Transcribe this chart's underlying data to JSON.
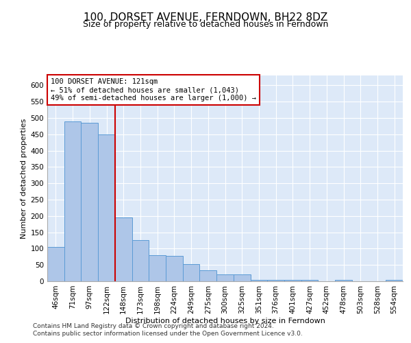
{
  "title": "100, DORSET AVENUE, FERNDOWN, BH22 8DZ",
  "subtitle": "Size of property relative to detached houses in Ferndown",
  "xlabel": "Distribution of detached houses by size in Ferndown",
  "ylabel": "Number of detached properties",
  "categories": [
    "46sqm",
    "71sqm",
    "97sqm",
    "122sqm",
    "148sqm",
    "173sqm",
    "198sqm",
    "224sqm",
    "249sqm",
    "275sqm",
    "300sqm",
    "325sqm",
    "351sqm",
    "376sqm",
    "401sqm",
    "427sqm",
    "452sqm",
    "478sqm",
    "503sqm",
    "528sqm",
    "554sqm"
  ],
  "values": [
    105,
    490,
    485,
    450,
    195,
    125,
    80,
    78,
    52,
    33,
    22,
    22,
    5,
    5,
    4,
    4,
    1,
    4,
    1,
    1,
    4
  ],
  "bar_color": "#aec6e8",
  "bar_edge_color": "#5b9bd5",
  "background_color": "#dde9f8",
  "red_line_x": 3.5,
  "annotation_text": "100 DORSET AVENUE: 121sqm\n← 51% of detached houses are smaller (1,043)\n49% of semi-detached houses are larger (1,000) →",
  "annotation_box_color": "#ffffff",
  "annotation_box_edge": "#cc0000",
  "footer_line1": "Contains HM Land Registry data © Crown copyright and database right 2024.",
  "footer_line2": "Contains public sector information licensed under the Open Government Licence v3.0.",
  "ylim": [
    0,
    630
  ],
  "yticks": [
    0,
    50,
    100,
    150,
    200,
    250,
    300,
    350,
    400,
    450,
    500,
    550,
    600
  ],
  "title_fontsize": 11,
  "subtitle_fontsize": 9,
  "xlabel_fontsize": 8,
  "ylabel_fontsize": 8,
  "tick_fontsize": 7.5,
  "annotation_fontsize": 7.5,
  "footer_fontsize": 6.5
}
